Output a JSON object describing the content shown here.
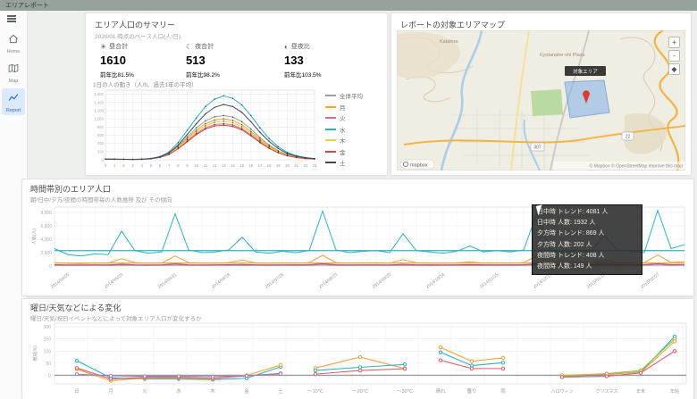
{
  "topbar": {
    "title": "エリアレポート"
  },
  "sidebar": {
    "items": [
      {
        "label": "Home"
      },
      {
        "label": "Map"
      },
      {
        "label": "Report"
      }
    ]
  },
  "summary_panel": {
    "title": "エリア人口のサマリー",
    "subtitle": "2020/01 時点のベース人口(人/日)",
    "stats": [
      {
        "icon": "sun-icon",
        "glyph": "☀",
        "glyph_color": "#5b8a8a",
        "label": "昼合計",
        "value": "1610",
        "value_color": "#b0413e",
        "sub": "前年比81.5%",
        "sub_color": "#c0392b"
      },
      {
        "icon": "moon-icon",
        "glyph": "☾",
        "glyph_color": "#e39338",
        "label": "夜合計",
        "value": "513",
        "value_color": "#e39338",
        "sub": "前年比98.2%",
        "sub_color": "#e39338"
      },
      {
        "icon": "day-night-ratio-icon",
        "glyph": "◐",
        "glyph_color": "#e07b36",
        "label": "昼夜比",
        "value": "133",
        "value_color": "#d96b3a",
        "sub": "前年比103.5%",
        "sub_color": "#d96b3a"
      }
    ],
    "chart_caption": "1日の人の動き（人/h、過去1年の平均）"
  },
  "map_panel": {
    "title": "レポートの対象エリアマップ",
    "place_labels": [
      "Katahira",
      "Kyotanabe-shi Plaza"
    ],
    "area_label": "対象エリア",
    "road_badges": [
      "307",
      "22"
    ],
    "zoom_controls": [
      "+",
      "-",
      "◆"
    ],
    "logo": "mapbox",
    "attribution": "© Mapbox © OpenStreetMap Improve this map"
  },
  "middle_panel": {
    "title": "時間帯別のエリア人口",
    "subtitle": "朝/日中/夕方/夜間の時間帯毎の人数推移 及び その傾向",
    "y_axis_title": "人数(人)",
    "tooltip": {
      "lines": [
        "日中時 トレンド: 4081 人",
        "日中時 人数: 1932 人",
        "夕方時 トレンド: 869 人",
        "夕方時 人数: 202 人",
        "夜間時 トレンド: 408 人",
        "夜間時 人数: 149 人"
      ]
    }
  },
  "bottom_panel": {
    "title": "曜日/天気などによる変化",
    "subtitle": "曜日/天気/祝日イベントなどによって対象エリア人口が変化するか",
    "y_axis_title": "増減(%)"
  },
  "chart_data": [
    {
      "id": "hourly",
      "type": "line",
      "title": "1日の人の動き（人/h、過去1年の平均）",
      "x": [
        "0",
        "1",
        "2",
        "3",
        "4",
        "5",
        "6",
        "7",
        "8",
        "9",
        "10",
        "11",
        "12",
        "13",
        "14",
        "15",
        "16",
        "17",
        "18",
        "19",
        "20",
        "21",
        "22",
        "23"
      ],
      "xlabel": "",
      "ylabel": "",
      "ylim": [
        0,
        1700
      ],
      "yticks": [
        0,
        200,
        400,
        600,
        800,
        1000,
        1200,
        1400,
        1600
      ],
      "legend_position": "right",
      "series": [
        {
          "name": "全体平均",
          "color": "#9e9e9e",
          "values": [
            20,
            15,
            12,
            10,
            15,
            30,
            70,
            160,
            330,
            560,
            780,
            950,
            1050,
            1080,
            1040,
            930,
            750,
            540,
            360,
            220,
            125,
            70,
            40,
            25
          ]
        },
        {
          "name": "月",
          "color": "#f5a623",
          "values": [
            15,
            12,
            10,
            8,
            12,
            28,
            65,
            150,
            310,
            520,
            720,
            880,
            970,
            1000,
            960,
            860,
            690,
            500,
            330,
            200,
            115,
            65,
            35,
            22
          ]
        },
        {
          "name": "火",
          "color": "#e06a8c",
          "values": [
            15,
            12,
            10,
            8,
            12,
            25,
            60,
            135,
            280,
            460,
            640,
            780,
            860,
            880,
            850,
            760,
            610,
            440,
            290,
            175,
            100,
            58,
            32,
            20
          ]
        },
        {
          "name": "水",
          "color": "#2fb0c0",
          "values": [
            18,
            14,
            12,
            10,
            15,
            32,
            80,
            190,
            420,
            720,
            1020,
            1300,
            1480,
            1560,
            1500,
            1340,
            1080,
            780,
            520,
            320,
            180,
            100,
            55,
            30
          ]
        },
        {
          "name": "木",
          "color": "#e3d34e",
          "values": [
            15,
            12,
            10,
            8,
            12,
            26,
            62,
            140,
            300,
            490,
            680,
            830,
            915,
            940,
            905,
            810,
            650,
            470,
            310,
            185,
            105,
            60,
            33,
            20
          ]
        },
        {
          "name": "金",
          "color": "#d14b44",
          "values": [
            16,
            13,
            10,
            9,
            12,
            25,
            58,
            130,
            270,
            440,
            615,
            750,
            825,
            845,
            815,
            730,
            585,
            420,
            280,
            170,
            98,
            55,
            30,
            19
          ]
        },
        {
          "name": "土",
          "color": "#3b4a63",
          "values": [
            18,
            14,
            12,
            10,
            14,
            30,
            72,
            165,
            360,
            620,
            880,
            1120,
            1280,
            1350,
            1300,
            1160,
            930,
            670,
            450,
            275,
            155,
            85,
            48,
            28
          ]
        }
      ]
    },
    {
      "id": "weekly",
      "type": "line",
      "n": 48,
      "x_tick_labels": [
        "2014/04/05",
        "2014/05/03",
        "2014/05/31",
        "2014/06/28",
        "2014/07/26",
        "2014/08/23",
        "2014/09/20",
        "2014/10/18",
        "2014/11/15",
        "2014/12/13",
        "2015/01/10",
        "2015/02/07"
      ],
      "x_tick_idx": [
        1,
        5,
        9,
        13,
        17,
        21,
        25,
        29,
        33,
        37,
        41,
        45
      ],
      "ylabel": "人数(人)",
      "ylim": [
        0,
        8800
      ],
      "yticks": [
        0,
        2000,
        4000,
        6000,
        8000
      ],
      "series": [
        {
          "name": "series-teal",
          "color": "#2fb0c0",
          "values": [
            2600,
            1700,
            1500,
            1800,
            1700,
            5200,
            2300,
            1900,
            2100,
            7800,
            2400,
            2000,
            2100,
            2400,
            4300,
            2100,
            1900,
            2200,
            2000,
            2300,
            8200,
            2400,
            2000,
            2200,
            2300,
            2000,
            4800,
            2300,
            2100,
            1900,
            2200,
            3000,
            2100,
            2300,
            2100,
            2400,
            7900,
            2200,
            2000,
            2300,
            2100,
            4600,
            2400,
            2200,
            2000,
            8300,
            2600,
            3200
          ]
        },
        {
          "name": "series-teal-trend",
          "color": "#2fb0c0",
          "const": 2300
        },
        {
          "name": "series-orange",
          "color": "#f0a33a",
          "values": [
            500,
            380,
            350,
            420,
            400,
            1100,
            520,
            420,
            450,
            1500,
            520,
            430,
            440,
            500,
            900,
            450,
            400,
            480,
            430,
            500,
            1600,
            520,
            430,
            470,
            480,
            420,
            950,
            480,
            440,
            400,
            460,
            620,
            440,
            480,
            440,
            500,
            1550,
            470,
            420,
            480,
            440,
            950,
            500,
            460,
            520,
            1650,
            540,
            650
          ]
        },
        {
          "name": "series-orange-trend",
          "color": "#f0a33a",
          "const": 430
        },
        {
          "name": "series-red",
          "color": "#d14b44",
          "values": [
            200,
            170,
            160,
            180,
            170,
            260,
            190,
            170,
            180,
            310,
            190,
            175,
            180,
            195,
            240,
            185,
            170,
            190,
            178,
            195,
            330,
            195,
            175,
            188,
            190,
            172,
            245,
            188,
            180,
            168,
            185,
            215,
            178,
            190,
            180,
            195,
            320,
            188,
            175,
            190,
            180,
            242,
            195,
            188,
            200,
            335,
            205,
            225
          ]
        },
        {
          "name": "series-purple",
          "color": "#9b7fc4",
          "values": [
            100,
            88,
            84,
            92,
            88,
            130,
            96,
            88,
            92,
            155,
            96,
            90,
            92,
            98,
            120,
            93,
            88,
            95,
            90,
            98,
            165,
            98,
            90,
            94,
            95,
            88,
            123,
            94,
            90,
            86,
            93,
            108,
            90,
            95,
            90,
            98,
            160,
            94,
            88,
            95,
            90,
            121,
            98,
            94,
            100,
            168,
            103,
            113
          ]
        }
      ]
    },
    {
      "id": "byday",
      "type": "line",
      "categories": [
        "日",
        "月",
        "火",
        "水",
        "木",
        "金",
        "土"
      ],
      "ylabel": "増減(%)",
      "ylim": [
        -35,
        215
      ],
      "yticks": [
        0,
        50,
        100,
        150,
        200
      ],
      "series": [
        {
          "name": "series-teal",
          "color": "#2fb0c0",
          "values": [
            60,
            -10,
            -15,
            -15,
            -18,
            -12,
            35
          ]
        },
        {
          "name": "series-orange",
          "color": "#f0a33a",
          "values": [
            25,
            -22,
            -12,
            -12,
            -15,
            0,
            42
          ]
        },
        {
          "name": "series-red",
          "color": "#d95f6a",
          "values": [
            30,
            -15,
            -8,
            -8,
            -12,
            -2,
            8
          ]
        },
        {
          "name": "series-purple",
          "color": "#9b7fc4",
          "values": [
            5,
            -2,
            -4,
            -4,
            -5,
            -2,
            6
          ]
        }
      ]
    },
    {
      "id": "bytemp",
      "type": "line",
      "categories": [
        "～10℃",
        "～20℃",
        "～30℃"
      ],
      "ylim": [
        -35,
        215
      ],
      "series": [
        {
          "name": "series-orange",
          "color": "#f0a33a",
          "values": [
            30,
            75,
            28
          ]
        },
        {
          "name": "series-teal",
          "color": "#2fb0c0",
          "values": [
            20,
            33,
            45
          ]
        },
        {
          "name": "series-red",
          "color": "#d95f6a",
          "values": [
            5,
            20,
            27
          ]
        }
      ]
    },
    {
      "id": "byweather",
      "type": "line",
      "categories": [
        "晴れ",
        "曇り",
        "雨"
      ],
      "ylim": [
        -35,
        215
      ],
      "series": [
        {
          "name": "series-orange",
          "color": "#f0a33a",
          "values": [
            115,
            58,
            72
          ]
        },
        {
          "name": "series-teal",
          "color": "#2fb0c0",
          "values": [
            95,
            40,
            52
          ]
        },
        {
          "name": "series-red",
          "color": "#d95f6a",
          "values": [
            62,
            28,
            28
          ]
        }
      ]
    },
    {
      "id": "byevent",
      "type": "line",
      "categories": [
        "ハロウィン",
        "クリスマス",
        "年末",
        "年始"
      ],
      "ylim": [
        -35,
        215
      ],
      "series": [
        {
          "name": "series-teal",
          "color": "#2fb0c0",
          "values": [
            -5,
            4,
            14,
            160
          ]
        },
        {
          "name": "series-green",
          "color": "#8bc34a",
          "values": [
            -3,
            7,
            20,
            150
          ]
        },
        {
          "name": "series-orange",
          "color": "#f0a33a",
          "values": [
            0,
            6,
            12,
            140
          ]
        },
        {
          "name": "series-red",
          "color": "#d95f6a",
          "values": [
            -7,
            -4,
            10,
            100
          ]
        }
      ]
    }
  ]
}
